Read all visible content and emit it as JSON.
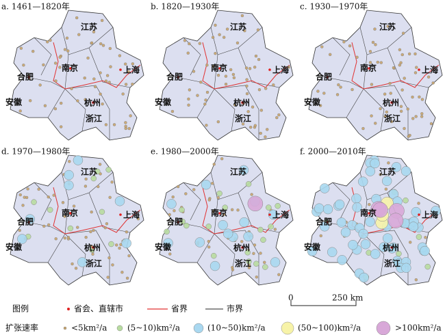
{
  "panels": [
    {
      "title": "a. 1461—1820年"
    },
    {
      "title": "b. 1820—1930年"
    },
    {
      "title": "c. 1930—1970年"
    },
    {
      "title": "d. 1970—1980年"
    },
    {
      "title": "e. 1980—2000年"
    },
    {
      "title": "f. 2000—2010年"
    }
  ],
  "place_labels": [
    "江苏",
    "南京",
    "上海",
    "合肥",
    "安徽",
    "杭州",
    "浙江"
  ],
  "legend": {
    "title": "图例",
    "capital": "省会、直辖市",
    "province_border": "省界",
    "city_border": "市界",
    "scale_start": "0",
    "scale_end": "250 km",
    "rate_title": "扩张速率",
    "rates": [
      "<5km²/a",
      "(5~10)km²/a",
      "(10~50)km²/a",
      "(50~100)km²/a",
      ">100km²/a"
    ]
  }
}
